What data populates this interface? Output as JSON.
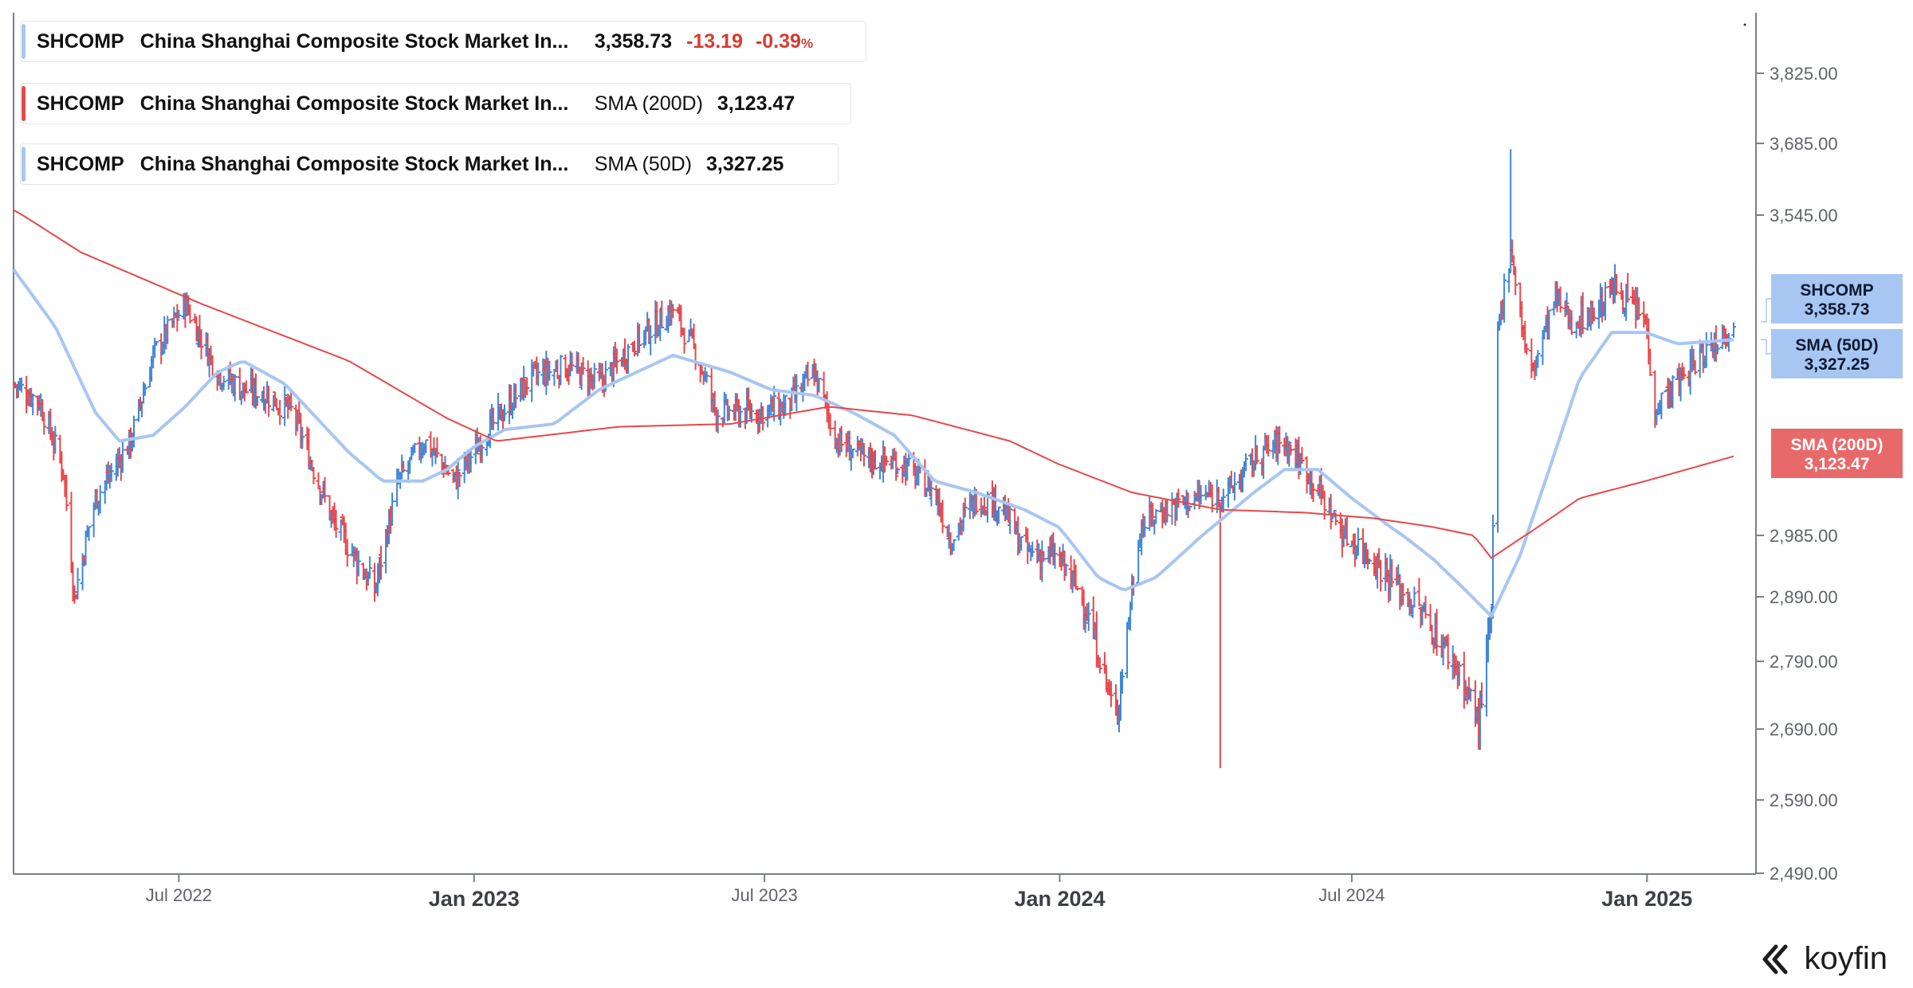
{
  "legend": [
    {
      "ticker": "SHCOMP",
      "name": "China Shanghai Composite Stock Market In...",
      "value": "3,358.73",
      "change": "-13.19",
      "change_pct": "-0.39",
      "pct_sign": "%",
      "color": "#a8c6f2"
    },
    {
      "ticker": "SHCOMP",
      "name": "China Shanghai Composite Stock Market In...",
      "metric": "SMA (200D)",
      "value": "3,123.47",
      "color": "#e8474a"
    },
    {
      "ticker": "SHCOMP",
      "name": "China Shanghai Composite Stock Market In...",
      "metric": "SMA (50D)",
      "value": "3,327.25",
      "color": "#a8c6f2"
    }
  ],
  "price_tags": [
    {
      "label": "SHCOMP",
      "value": "3,358.73",
      "color": "#a8c6f2"
    },
    {
      "label": "SMA (50D)",
      "value": "3,327.25",
      "color": "#a8c6f2"
    },
    {
      "label": "SMA (200D)",
      "value": "3,123.47",
      "color": "#e8696a"
    }
  ],
  "brand": "koyfin",
  "chart_data": {
    "type": "line",
    "title": "",
    "xlabel": "",
    "ylabel": "",
    "ylim": [
      2490,
      3900
    ],
    "y_ticks": [
      "3,825.00",
      "3,685.00",
      "3,545.00",
      "2,985.00",
      "2,890.00",
      "2,790.00",
      "2,690.00",
      "2,590.00",
      "2,490.00"
    ],
    "y_tick_values": [
      3825,
      3685,
      3545,
      2985,
      2890,
      2790,
      2690,
      2590,
      2490
    ],
    "x_ticks": [
      {
        "label": "Jul 2022",
        "bold": false,
        "date": "2022-07-01"
      },
      {
        "label": "Jan 2023",
        "bold": true,
        "date": "2023-01-01"
      },
      {
        "label": "Jul 2023",
        "bold": false,
        "date": "2023-07-01"
      },
      {
        "label": "Jan 2024",
        "bold": true,
        "date": "2024-01-01"
      },
      {
        "label": "Jul 2024",
        "bold": false,
        "date": "2024-07-01"
      },
      {
        "label": "Jan 2025",
        "bold": true,
        "date": "2025-01-01"
      }
    ],
    "x_range": [
      "2022-03-20",
      "2025-02-24"
    ],
    "up_color": "#3f86d8",
    "down_color": "#e8474a",
    "series": [
      {
        "name": "SHCOMP",
        "style": "ohlc-bars",
        "anchors": [
          [
            "2022-03-20",
            3250
          ],
          [
            "2022-04-05",
            3220
          ],
          [
            "2022-04-20",
            3100
          ],
          [
            "2022-04-27",
            2890
          ],
          [
            "2022-05-10",
            3050
          ],
          [
            "2022-06-01",
            3150
          ],
          [
            "2022-06-15",
            3300
          ],
          [
            "2022-07-05",
            3390
          ],
          [
            "2022-07-25",
            3270
          ],
          [
            "2022-08-10",
            3240
          ],
          [
            "2022-08-25",
            3230
          ],
          [
            "2022-09-10",
            3200
          ],
          [
            "2022-10-05",
            3010
          ],
          [
            "2022-10-31",
            2900
          ],
          [
            "2022-11-15",
            3080
          ],
          [
            "2022-12-01",
            3150
          ],
          [
            "2022-12-20",
            3080
          ],
          [
            "2023-01-10",
            3170
          ],
          [
            "2023-02-05",
            3260
          ],
          [
            "2023-02-28",
            3280
          ],
          [
            "2023-03-20",
            3250
          ],
          [
            "2023-04-10",
            3320
          ],
          [
            "2023-05-05",
            3380
          ],
          [
            "2023-05-20",
            3300
          ],
          [
            "2023-06-01",
            3200
          ],
          [
            "2023-06-25",
            3200
          ],
          [
            "2023-07-15",
            3210
          ],
          [
            "2023-08-01",
            3270
          ],
          [
            "2023-08-15",
            3150
          ],
          [
            "2023-09-01",
            3120
          ],
          [
            "2023-09-25",
            3110
          ],
          [
            "2023-10-15",
            3060
          ],
          [
            "2023-10-25",
            2980
          ],
          [
            "2023-11-10",
            3050
          ],
          [
            "2023-11-25",
            3040
          ],
          [
            "2023-12-10",
            2960
          ],
          [
            "2023-12-31",
            2950
          ],
          [
            "2024-01-15",
            2890
          ],
          [
            "2024-01-28",
            2780
          ],
          [
            "2024-02-05",
            2700
          ],
          [
            "2024-02-20",
            3000
          ],
          [
            "2024-03-05",
            3030
          ],
          [
            "2024-03-25",
            3050
          ],
          [
            "2024-04-15",
            3060
          ],
          [
            "2024-05-05",
            3130
          ],
          [
            "2024-05-20",
            3150
          ],
          [
            "2024-06-05",
            3090
          ],
          [
            "2024-06-25",
            2990
          ],
          [
            "2024-07-10",
            2960
          ],
          [
            "2024-07-25",
            2920
          ],
          [
            "2024-08-15",
            2860
          ],
          [
            "2024-09-05",
            2780
          ],
          [
            "2024-09-18",
            2700
          ],
          [
            "2024-09-26",
            2860
          ],
          [
            "2024-09-30",
            3340
          ],
          [
            "2024-10-08",
            3490
          ],
          [
            "2024-10-20",
            3260
          ],
          [
            "2024-11-05",
            3400
          ],
          [
            "2024-11-15",
            3360
          ],
          [
            "2024-12-01",
            3380
          ],
          [
            "2024-12-12",
            3420
          ],
          [
            "2024-12-31",
            3360
          ],
          [
            "2025-01-06",
            3210
          ],
          [
            "2025-01-20",
            3250
          ],
          [
            "2025-02-01",
            3290
          ],
          [
            "2025-02-17",
            3340
          ],
          [
            "2025-02-24",
            3358.73
          ]
        ],
        "spikes": [
          {
            "date": "2024-10-08",
            "high": 3674
          },
          {
            "date": "2024-04-10",
            "low": 2635
          }
        ]
      },
      {
        "name": "SMA (50D)",
        "style": "line",
        "color": "#a8c6f2",
        "points": [
          [
            "2022-03-20",
            3450
          ],
          [
            "2022-04-15",
            3350
          ],
          [
            "2022-05-10",
            3200
          ],
          [
            "2022-05-25",
            3150
          ],
          [
            "2022-06-15",
            3160
          ],
          [
            "2022-07-05",
            3210
          ],
          [
            "2022-07-25",
            3270
          ],
          [
            "2022-08-10",
            3290
          ],
          [
            "2022-09-05",
            3250
          ],
          [
            "2022-10-15",
            3130
          ],
          [
            "2022-11-05",
            3080
          ],
          [
            "2022-11-30",
            3080
          ],
          [
            "2022-12-15",
            3100
          ],
          [
            "2023-01-01",
            3140
          ],
          [
            "2023-01-20",
            3170
          ],
          [
            "2023-02-20",
            3180
          ],
          [
            "2023-03-20",
            3240
          ],
          [
            "2023-05-05",
            3300
          ],
          [
            "2023-06-10",
            3270
          ],
          [
            "2023-07-05",
            3240
          ],
          [
            "2023-08-01",
            3230
          ],
          [
            "2023-08-25",
            3200
          ],
          [
            "2023-09-20",
            3160
          ],
          [
            "2023-10-15",
            3080
          ],
          [
            "2023-11-10",
            3060
          ],
          [
            "2023-12-10",
            3030
          ],
          [
            "2023-12-31",
            3000
          ],
          [
            "2024-01-25",
            2920
          ],
          [
            "2024-02-10",
            2900
          ],
          [
            "2024-03-01",
            2920
          ],
          [
            "2024-04-01",
            2990
          ],
          [
            "2024-05-01",
            3060
          ],
          [
            "2024-05-20",
            3100
          ],
          [
            "2024-06-10",
            3100
          ],
          [
            "2024-07-01",
            3050
          ],
          [
            "2024-07-25",
            3000
          ],
          [
            "2024-08-20",
            2950
          ],
          [
            "2024-09-10",
            2900
          ],
          [
            "2024-09-26",
            2860
          ],
          [
            "2024-10-15",
            2960
          ],
          [
            "2024-11-01",
            3100
          ],
          [
            "2024-11-20",
            3260
          ],
          [
            "2024-12-10",
            3340
          ],
          [
            "2024-12-31",
            3340
          ],
          [
            "2025-01-20",
            3320
          ],
          [
            "2025-02-24",
            3327.25
          ]
        ]
      },
      {
        "name": "SMA (200D)",
        "style": "line",
        "color": "#e8474a",
        "points": [
          [
            "2022-03-20",
            3555
          ],
          [
            "2022-05-01",
            3480
          ],
          [
            "2022-07-15",
            3390
          ],
          [
            "2022-10-15",
            3290
          ],
          [
            "2022-12-15",
            3190
          ],
          [
            "2023-01-15",
            3150
          ],
          [
            "2023-04-01",
            3175
          ],
          [
            "2023-06-10",
            3180
          ],
          [
            "2023-08-10",
            3210
          ],
          [
            "2023-10-01",
            3195
          ],
          [
            "2023-12-01",
            3150
          ],
          [
            "2023-12-31",
            3110
          ],
          [
            "2024-02-15",
            3060
          ],
          [
            "2024-04-10",
            3030
          ],
          [
            "2024-06-01",
            3025
          ],
          [
            "2024-07-15",
            3015
          ],
          [
            "2024-08-20",
            3000
          ],
          [
            "2024-09-15",
            2985
          ],
          [
            "2024-09-26",
            2950
          ],
          [
            "2024-10-20",
            2990
          ],
          [
            "2024-11-20",
            3050
          ],
          [
            "2024-12-31",
            3080
          ],
          [
            "2025-02-24",
            3123.47
          ]
        ]
      }
    ],
    "grid": false,
    "legend_position": "top-left"
  }
}
